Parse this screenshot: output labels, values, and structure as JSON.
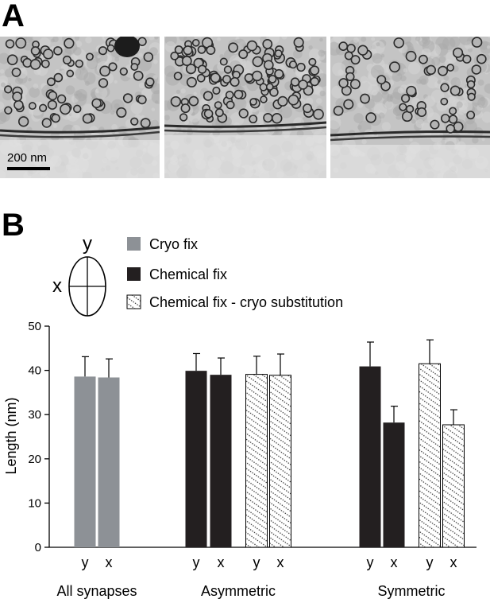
{
  "panels": {
    "a_label": "A",
    "b_label": "B"
  },
  "micrographs": {
    "scale_bar_label": "200 nm",
    "count": 3
  },
  "ellipse_diagram": {
    "y_label": "y",
    "x_label": "x"
  },
  "legend": {
    "items": [
      {
        "label": "Cryo fix",
        "style": "solid",
        "color": "#8d9196"
      },
      {
        "label": "Chemical fix",
        "style": "solid",
        "color": "#231f20"
      },
      {
        "label": "Chemical fix - cryo substitution",
        "style": "dotted-hatch",
        "color": "#ffffff"
      }
    ]
  },
  "chart_data": {
    "type": "bar",
    "title": "",
    "xlabel": "",
    "ylabel": "Length (nm)",
    "ylim": [
      0,
      50
    ],
    "yticks": [
      0,
      10,
      20,
      30,
      40,
      50
    ],
    "grid": false,
    "groups": [
      {
        "label": "All synapses",
        "bars": [
          {
            "axis": "y",
            "series": "Cryo fix",
            "value": 38.6,
            "error": 4.5
          },
          {
            "axis": "x",
            "series": "Cryo fix",
            "value": 38.4,
            "error": 4.2
          }
        ]
      },
      {
        "label": "Asymmetric",
        "bars": [
          {
            "axis": "y",
            "series": "Chemical fix",
            "value": 39.9,
            "error": 3.9
          },
          {
            "axis": "x",
            "series": "Chemical fix",
            "value": 39.0,
            "error": 3.8
          },
          {
            "axis": "y",
            "series": "Chemical fix - cryo substitution",
            "value": 39.1,
            "error": 4.1
          },
          {
            "axis": "x",
            "series": "Chemical fix - cryo substitution",
            "value": 38.9,
            "error": 4.8
          }
        ]
      },
      {
        "label": "Symmetric",
        "bars": [
          {
            "axis": "y",
            "series": "Chemical fix",
            "value": 40.9,
            "error": 5.5
          },
          {
            "axis": "x",
            "series": "Chemical fix",
            "value": 28.2,
            "error": 3.7
          },
          {
            "axis": "y",
            "series": "Chemical fix - cryo substitution",
            "value": 41.5,
            "error": 5.4
          },
          {
            "axis": "x",
            "series": "Chemical fix - cryo substitution",
            "value": 27.7,
            "error": 3.4
          }
        ]
      }
    ]
  }
}
